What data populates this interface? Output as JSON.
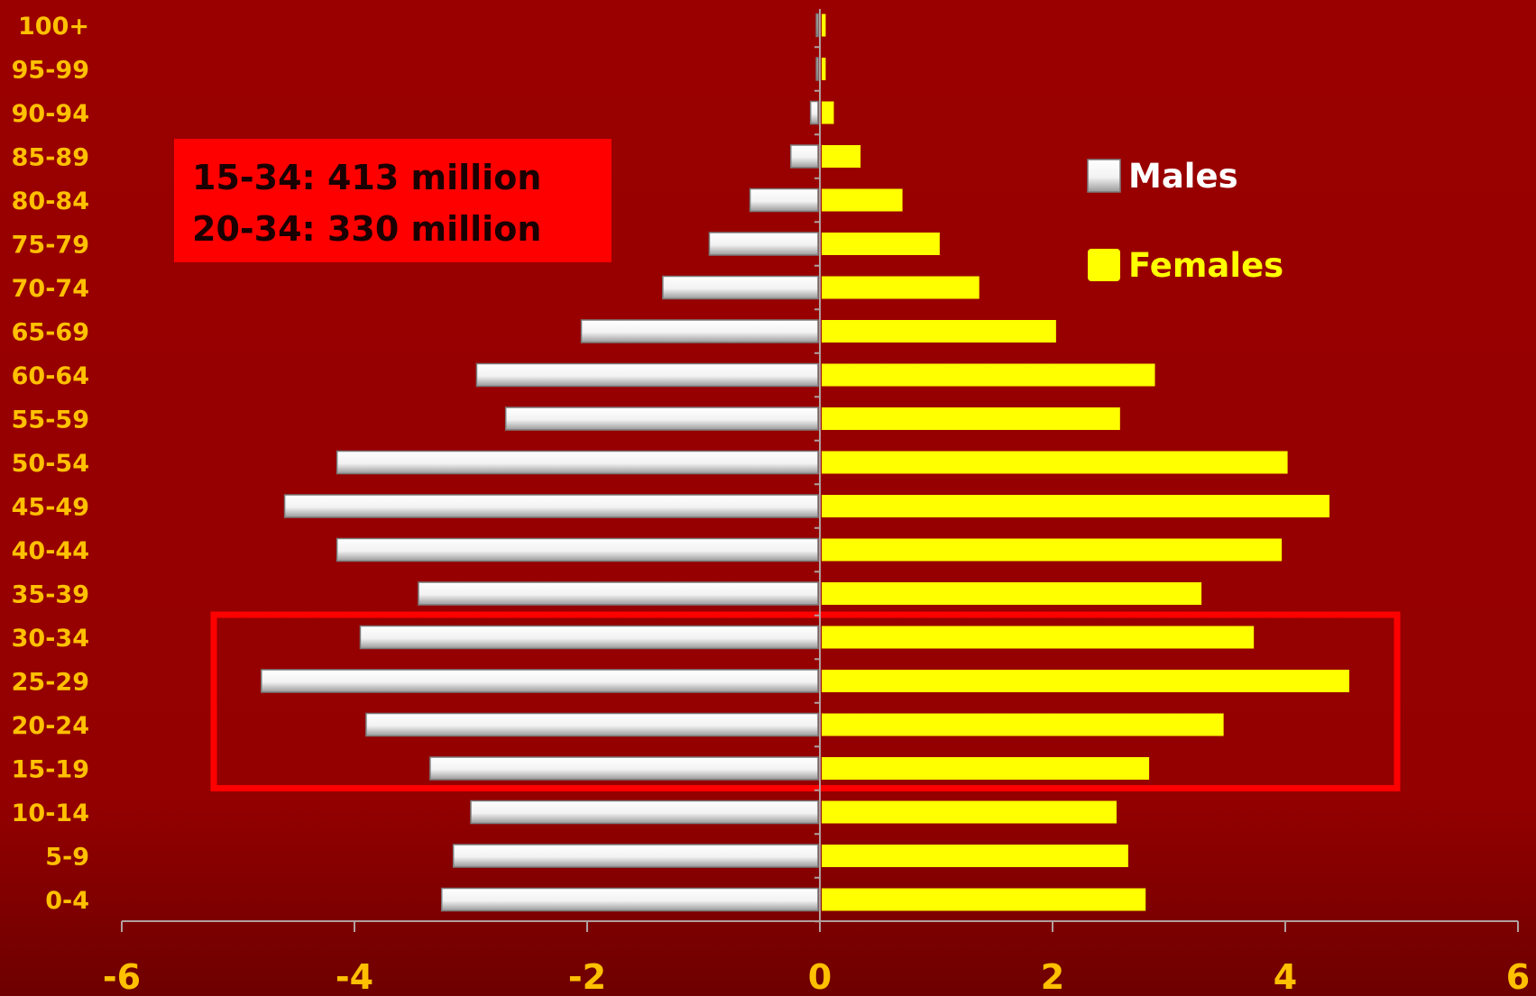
{
  "annotation": {
    "line1": "15-34: 413 million",
    "line2": "20-34: 330 million"
  },
  "colors": {
    "background": "#990000",
    "males": "#ffffff",
    "females": "#ffff00",
    "labels": "#ffc000",
    "highlight_box": "#ff0000"
  },
  "chart_data": {
    "type": "bar",
    "orientation": "horizontal",
    "layout": "population-pyramid",
    "categories": [
      "0-4",
      "5-9",
      "10-14",
      "15-19",
      "20-24",
      "25-29",
      "30-34",
      "35-39",
      "40-44",
      "45-49",
      "50-54",
      "55-59",
      "60-64",
      "65-69",
      "70-74",
      "75-79",
      "80-84",
      "85-89",
      "90-94",
      "95-99",
      "100+"
    ],
    "series": [
      {
        "name": "Males",
        "color": "#ffffff",
        "values": [
          -3.25,
          -3.15,
          -3.0,
          -3.35,
          -3.9,
          -4.8,
          -3.95,
          -3.45,
          -4.15,
          -4.6,
          -4.15,
          -2.7,
          -2.95,
          -2.05,
          -1.35,
          -0.95,
          -0.6,
          -0.25,
          -0.08,
          -0.03,
          -0.03
        ]
      },
      {
        "name": "Females",
        "color": "#ffff00",
        "values": [
          2.8,
          2.65,
          2.55,
          2.83,
          3.47,
          4.55,
          3.73,
          3.28,
          3.97,
          4.38,
          4.02,
          2.58,
          2.88,
          2.03,
          1.37,
          1.03,
          0.71,
          0.35,
          0.12,
          0.05,
          0.05
        ]
      }
    ],
    "xlim": [
      -6,
      6
    ],
    "xticks": [
      -6,
      -4,
      -2,
      0,
      2,
      4,
      6
    ],
    "xtick_labels": [
      "-6",
      "-4",
      "-2",
      "0",
      "2",
      "4",
      "6"
    ],
    "legend": {
      "placement": "top-right",
      "entries": [
        "Males",
        "Females"
      ]
    },
    "highlight": {
      "from_category": "15-19",
      "to_category": "30-34"
    },
    "grid": false
  }
}
